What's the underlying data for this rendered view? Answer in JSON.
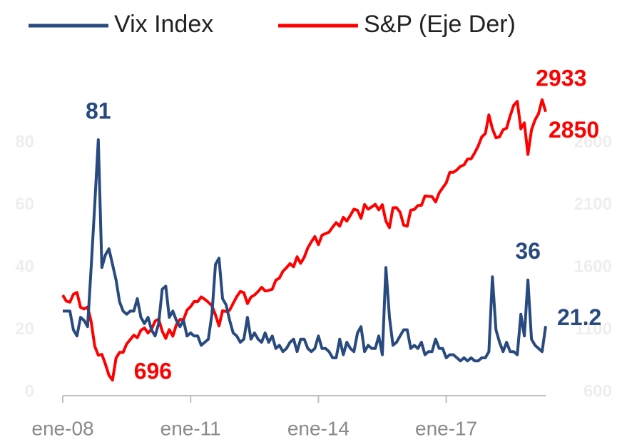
{
  "chart_data": {
    "type": "line",
    "x": [
      "2008-01",
      "2008-02",
      "2008-03",
      "2008-04",
      "2008-05",
      "2008-06",
      "2008-07",
      "2008-08",
      "2008-09",
      "2008-10",
      "2008-11",
      "2008-12",
      "2009-01",
      "2009-02",
      "2009-03",
      "2009-04",
      "2009-05",
      "2009-06",
      "2009-07",
      "2009-08",
      "2009-09",
      "2009-10",
      "2009-11",
      "2009-12",
      "2010-01",
      "2010-02",
      "2010-03",
      "2010-04",
      "2010-05",
      "2010-06",
      "2010-07",
      "2010-08",
      "2010-09",
      "2010-10",
      "2010-11",
      "2010-12",
      "2011-01",
      "2011-02",
      "2011-03",
      "2011-04",
      "2011-05",
      "2011-06",
      "2011-07",
      "2011-08",
      "2011-09",
      "2011-10",
      "2011-11",
      "2011-12",
      "2012-01",
      "2012-02",
      "2012-03",
      "2012-04",
      "2012-05",
      "2012-06",
      "2012-07",
      "2012-08",
      "2012-09",
      "2012-10",
      "2012-11",
      "2012-12",
      "2013-01",
      "2013-02",
      "2013-03",
      "2013-04",
      "2013-05",
      "2013-06",
      "2013-07",
      "2013-08",
      "2013-09",
      "2013-10",
      "2013-11",
      "2013-12",
      "2014-01",
      "2014-02",
      "2014-03",
      "2014-04",
      "2014-05",
      "2014-06",
      "2014-07",
      "2014-08",
      "2014-09",
      "2014-10",
      "2014-11",
      "2014-12",
      "2015-01",
      "2015-02",
      "2015-03",
      "2015-04",
      "2015-05",
      "2015-06",
      "2015-07",
      "2015-08",
      "2015-09",
      "2015-10",
      "2015-11",
      "2015-12",
      "2016-01",
      "2016-02",
      "2016-03",
      "2016-04",
      "2016-05",
      "2016-06",
      "2016-07",
      "2016-08",
      "2016-09",
      "2016-10",
      "2016-11",
      "2016-12",
      "2017-01",
      "2017-02",
      "2017-03",
      "2017-04",
      "2017-05",
      "2017-06",
      "2017-07",
      "2017-08",
      "2017-09",
      "2017-10",
      "2017-11",
      "2017-12",
      "2018-01",
      "2018-02",
      "2018-03",
      "2018-04",
      "2018-05",
      "2018-06",
      "2018-07",
      "2018-08",
      "2018-09",
      "2018-10",
      "2018-11",
      "2018-12",
      "2019-01",
      "2019-02",
      "2019-03",
      "2019-04",
      "2019-05"
    ],
    "series": [
      {
        "name": "Vix Index",
        "color": "#284a7e",
        "values": [
          26,
          26,
          26,
          20,
          18,
          24,
          23,
          21,
          40,
          60,
          81,
          40,
          44,
          46,
          41,
          36,
          29,
          26,
          25,
          26,
          26,
          30,
          24,
          22,
          24,
          20,
          18,
          22,
          33,
          34,
          24,
          26,
          23,
          21,
          23,
          18,
          19,
          18,
          18,
          15,
          16,
          17,
          25,
          41,
          43,
          30,
          28,
          23,
          19,
          18,
          16,
          17,
          24,
          17,
          19,
          17,
          16,
          19,
          16,
          18,
          14,
          15,
          13,
          14,
          16,
          17,
          13,
          17,
          17,
          14,
          13,
          14,
          18,
          14,
          14,
          13,
          11,
          11,
          17,
          12,
          16,
          14,
          13,
          19,
          21,
          13,
          15,
          14,
          14,
          18,
          12,
          40,
          24,
          15,
          16,
          18,
          20,
          20,
          14,
          15,
          14,
          16,
          12,
          13,
          13,
          17,
          14,
          14,
          11,
          12,
          12,
          11,
          10,
          11,
          10,
          11,
          10,
          10,
          11,
          11,
          13,
          37,
          20,
          16,
          13,
          16,
          13,
          13,
          12,
          25,
          18,
          36,
          17,
          15,
          14,
          13,
          21.2
        ]
      },
      {
        "name": "S&P (Eje Der)",
        "color": "#ff0000",
        "axis": "y2",
        "values": [
          1378,
          1330,
          1322,
          1385,
          1400,
          1280,
          1267,
          1283,
          1165,
          969,
          896,
          903,
          826,
          735,
          696,
          873,
          919,
          919,
          987,
          1021,
          1057,
          1036,
          1096,
          1115,
          1074,
          1104,
          1169,
          1187,
          1089,
          1031,
          1102,
          1049,
          1141,
          1183,
          1181,
          1258,
          1286,
          1327,
          1326,
          1364,
          1345,
          1321,
          1292,
          1219,
          1131,
          1253,
          1247,
          1258,
          1312,
          1366,
          1408,
          1398,
          1310,
          1362,
          1379,
          1407,
          1441,
          1412,
          1416,
          1426,
          1498,
          1515,
          1569,
          1598,
          1631,
          1606,
          1686,
          1633,
          1682,
          1757,
          1806,
          1848,
          1783,
          1859,
          1872,
          1884,
          1924,
          1960,
          1931,
          2003,
          1972,
          2018,
          2068,
          2059,
          1995,
          2105,
          2068,
          2086,
          2107,
          2063,
          2104,
          1972,
          1920,
          2079,
          2080,
          2044,
          1940,
          1932,
          2060,
          2065,
          2097,
          2099,
          2174,
          2171,
          2168,
          2126,
          2199,
          2239,
          2279,
          2364,
          2363,
          2384,
          2412,
          2423,
          2470,
          2472,
          2519,
          2575,
          2648,
          2674,
          2824,
          2714,
          2641,
          2648,
          2705,
          2718,
          2816,
          2902,
          2933,
          2712,
          2760,
          2507,
          2704,
          2784,
          2834,
          2946,
          2850
        ]
      }
    ],
    "ylim": [
      0,
      100
    ],
    "yticks": [
      0,
      20,
      40,
      60,
      80
    ],
    "y2lim": [
      600,
      3100
    ],
    "y2ticks": [
      600,
      1100,
      1600,
      2100,
      2600
    ],
    "xticks": [
      {
        "value": "2008-01",
        "label": "ene-08"
      },
      {
        "value": "2011-01",
        "label": "ene-11"
      },
      {
        "value": "2014-01",
        "label": "ene-14"
      },
      {
        "value": "2017-01",
        "label": "ene-17"
      }
    ],
    "legend": "top"
  }
}
